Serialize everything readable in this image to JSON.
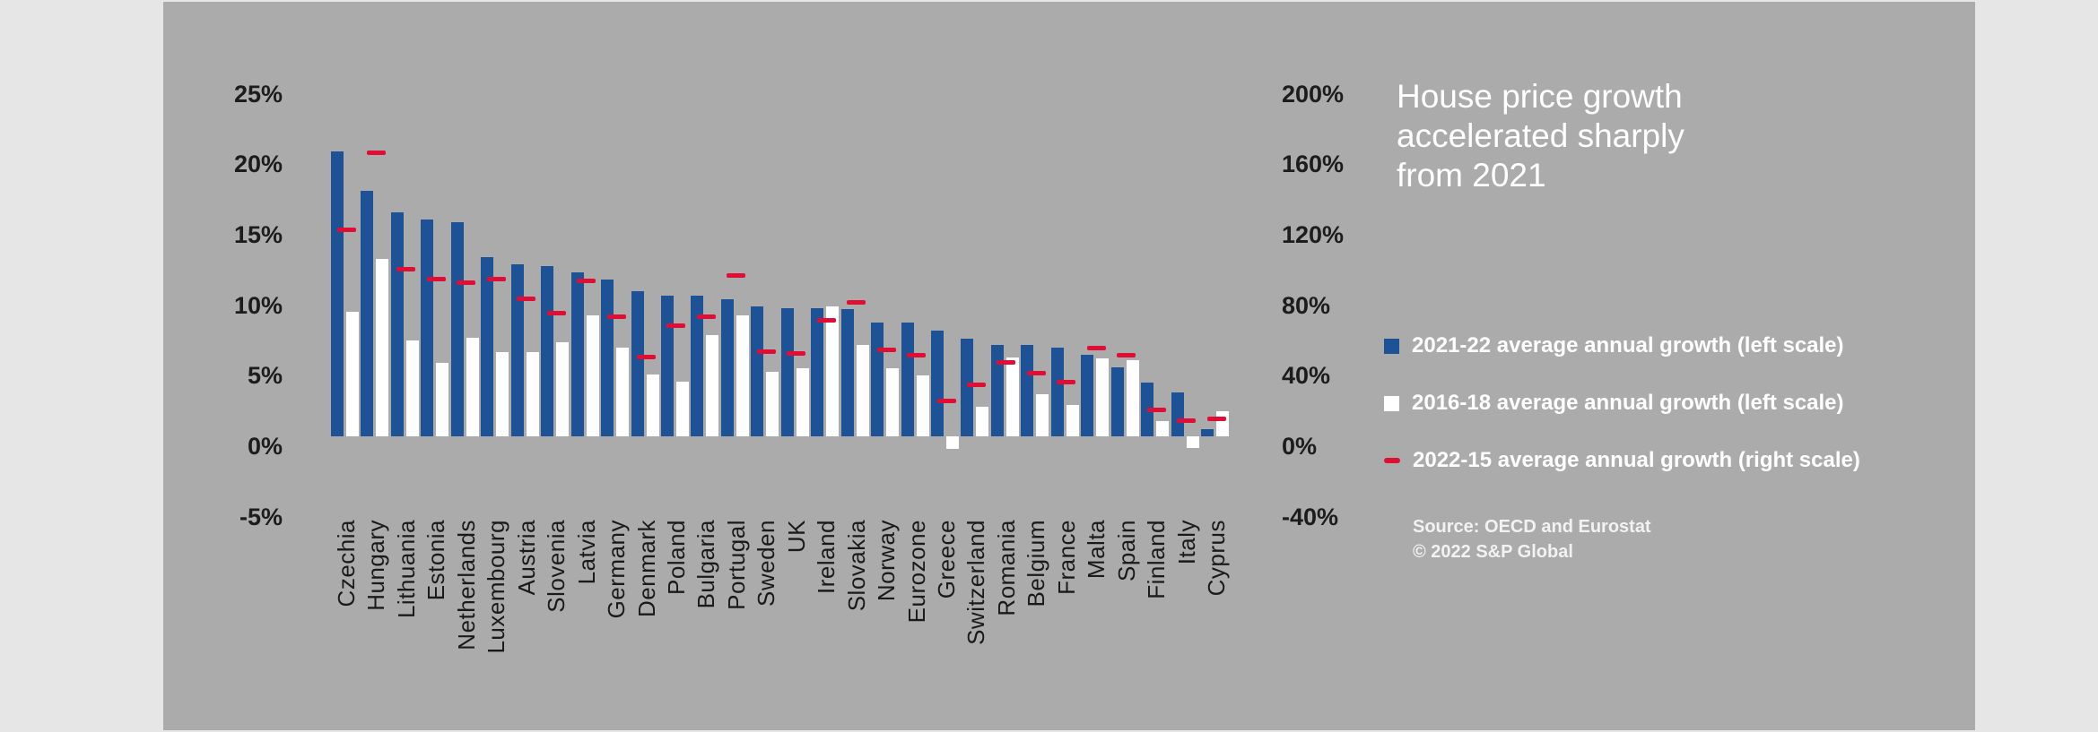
{
  "page": {
    "background": "#e6e6e6",
    "panel_background": "#ababab"
  },
  "title": {
    "lines": [
      "House price growth",
      "accelerated sharply",
      "from 2021"
    ],
    "color": "#ffffff"
  },
  "legend": {
    "items": [
      {
        "marker": "blue-square",
        "color": "#1d5296",
        "label": "2021-22 average annual growth (left scale)"
      },
      {
        "marker": "white-square",
        "color": "#ffffff",
        "label": "2016-18 average annual growth (left scale)"
      },
      {
        "marker": "red-dash",
        "color": "#e00d34",
        "label": "2022-15 average annual growth (right scale)"
      }
    ]
  },
  "source": {
    "line1": "Source: OECD and Eurostat",
    "line2": "© 2022 S&P Global"
  },
  "chart_data": {
    "type": "bar",
    "title": "House price growth accelerated sharply from 2021",
    "grid": false,
    "legend_position": "right",
    "left_axis": {
      "ticks": [
        "25%",
        "20%",
        "15%",
        "10%",
        "5%",
        "0%",
        "-5%"
      ],
      "values": [
        25,
        20,
        15,
        10,
        5,
        0,
        -5
      ],
      "range": [
        -5,
        25
      ],
      "unit": "%"
    },
    "right_axis": {
      "ticks": [
        "200%",
        "160%",
        "120%",
        "80%",
        "40%",
        "0%",
        "-40%"
      ],
      "values": [
        200,
        160,
        120,
        80,
        40,
        0,
        -40
      ],
      "range": [
        -40,
        200
      ],
      "unit": "%"
    },
    "categories": [
      "Czechia",
      "Hungary",
      "Lithuania",
      "Estonia",
      "Netherlands",
      "Luxembourg",
      "Austria",
      "Slovenia",
      "Latvia",
      "Germany",
      "Denmark",
      "Poland",
      "Bulgaria",
      "Portugal",
      "Sweden",
      "UK",
      "Ireland",
      "Slovakia",
      "Norway",
      "Eurozone",
      "Greece",
      "Switzerland",
      "Romania",
      "Belgium",
      "France",
      "Malta",
      "Spain",
      "Finland",
      "Italy",
      "Cyprus"
    ],
    "series": [
      {
        "name": "2021-22 average annual growth (left scale)",
        "axis": "left",
        "style": "bar",
        "color": "#1d5296",
        "values": [
          20.2,
          17.4,
          15.9,
          15.4,
          15.2,
          12.7,
          12.2,
          12.1,
          11.6,
          11.1,
          10.3,
          10.0,
          10.0,
          9.7,
          9.2,
          9.1,
          9.1,
          9.0,
          8.1,
          8.1,
          7.5,
          6.9,
          6.5,
          6.5,
          6.3,
          5.8,
          4.9,
          3.8,
          3.1,
          0.5
        ]
      },
      {
        "name": "2016-18 average annual growth (left scale)",
        "axis": "left",
        "style": "bar",
        "color": "#ffffff",
        "values": [
          8.8,
          12.6,
          6.8,
          5.2,
          7.0,
          6.0,
          6.0,
          6.7,
          8.6,
          6.3,
          4.4,
          3.9,
          7.2,
          8.6,
          4.6,
          4.8,
          9.2,
          6.5,
          4.8,
          4.3,
          -0.9,
          2.1,
          5.6,
          3.0,
          2.2,
          5.5,
          5.4,
          1.1,
          -0.8,
          1.8
        ]
      },
      {
        "name": "2022-15 average annual growth (right scale)",
        "axis": "right",
        "style": "dash",
        "color": "#e00d34",
        "values": [
          117,
          161,
          95,
          89,
          87,
          89,
          78,
          70,
          88,
          68,
          45,
          63,
          68,
          91,
          48,
          47,
          66,
          76,
          49,
          46,
          20,
          29,
          42,
          36,
          31,
          50,
          46,
          15,
          9,
          10
        ]
      }
    ]
  }
}
